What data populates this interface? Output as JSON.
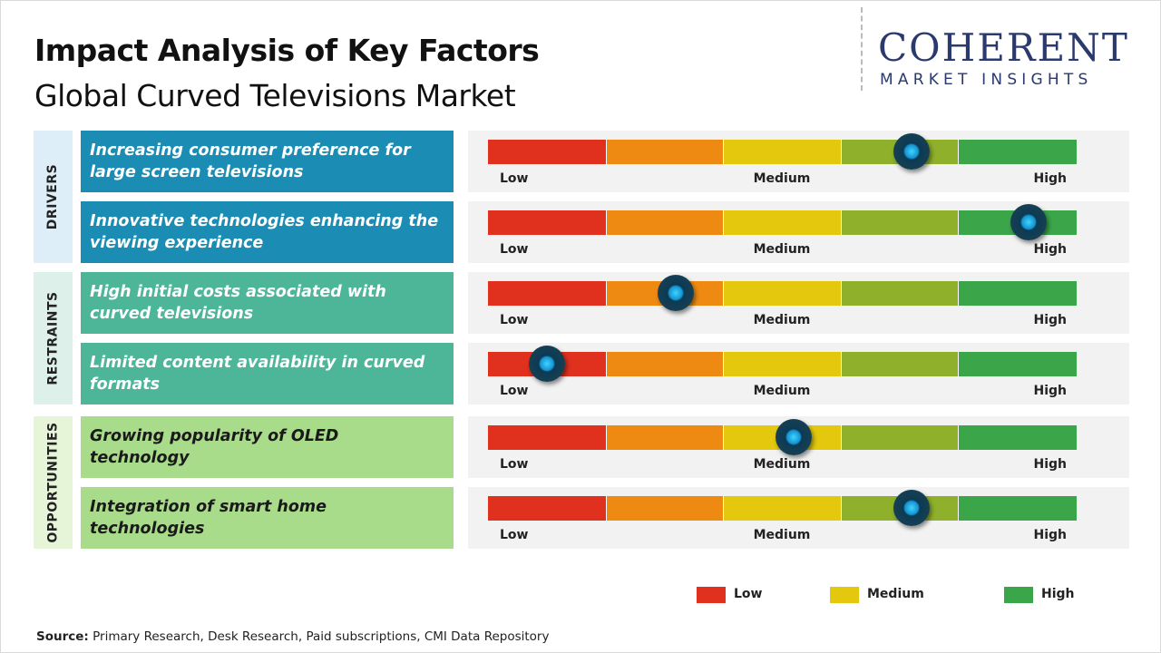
{
  "header": {
    "title": "Impact Analysis of Key Factors",
    "subtitle": "Global Curved Televisions Market"
  },
  "logo": {
    "brand": "COHERENT",
    "tagline": "MARKET INSIGHTS"
  },
  "scale": {
    "labels": [
      "Low",
      "Medium",
      "High"
    ],
    "colors": [
      "#e0301e",
      "#ee8a12",
      "#e3c80e",
      "#8fb02a",
      "#3aa549"
    ]
  },
  "groups": [
    {
      "label": "DRIVERS",
      "label_color": "#ddeef8",
      "box_color": "#1b8cb3",
      "factors": [
        {
          "text": "Increasing consumer preference for large screen televisions",
          "level": 3.6
        },
        {
          "text": "Innovative technologies enhancing the viewing experience",
          "level": 4.6
        }
      ]
    },
    {
      "label": "RESTRAINTS",
      "label_color": "#ddf0ea",
      "box_color": "#4db598",
      "factors": [
        {
          "text": "High initial costs associated with curved televisions",
          "level": 1.6
        },
        {
          "text": "Limited content availability in curved formats",
          "level": 0.5
        }
      ]
    },
    {
      "label": "OPPORTUNITIES",
      "label_color": "#e6f4d8",
      "box_color": "#a9dc8a",
      "factors": [
        {
          "text": "Growing popularity of OLED technology",
          "level": 2.6
        },
        {
          "text": "Integration of smart home technologies",
          "level": 3.6
        }
      ]
    }
  ],
  "legend": [
    {
      "label": "Low",
      "color": "#e0301e"
    },
    {
      "label": "Medium",
      "color": "#e3c80e"
    },
    {
      "label": "High",
      "color": "#3aa549"
    }
  ],
  "source": {
    "label": "Source:",
    "text": "Primary Research, Desk Research, Paid subscriptions, CMI Data Repository"
  }
}
